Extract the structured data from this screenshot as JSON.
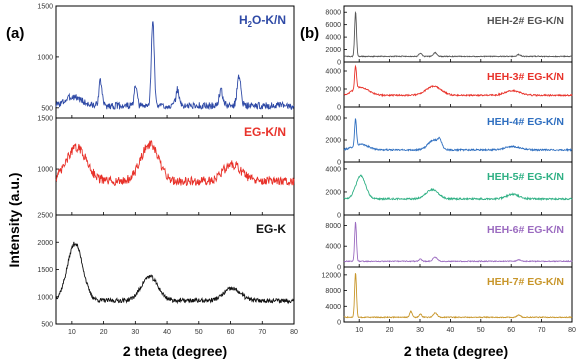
{
  "chart_data": [
    {
      "panel": "(a)",
      "type": "line",
      "xlabel": "2 theta (degree)",
      "ylabel": "Intensity (a.u.)",
      "xlim": [
        5,
        80
      ],
      "xticks": [
        10,
        20,
        30,
        40,
        50,
        60,
        70,
        80
      ],
      "subplots": [
        {
          "label": "H2O-K/N",
          "label_main": "H",
          "label_sub": "2",
          "label_rest": "O-K/N",
          "color": "#2f4aa6",
          "ylim": [
            400,
            1500
          ],
          "yticks": [
            500,
            1000,
            1500
          ],
          "baseline": 520,
          "peaks": [
            [
              10.5,
              90,
              2.5
            ],
            [
              19.0,
              240,
              0.5
            ],
            [
              30.1,
              190,
              0.45
            ],
            [
              35.5,
              850,
              0.45
            ],
            [
              43.3,
              160,
              0.5
            ],
            [
              57.0,
              150,
              0.6
            ],
            [
              62.7,
              290,
              0.6
            ]
          ],
          "noise": 35
        },
        {
          "label": "EG-K/N",
          "color": "#e8322a",
          "ylim": [
            550,
            1500
          ],
          "yticks": [
            1000,
            1500
          ],
          "baseline": 880,
          "peaks": [
            [
              11.5,
              330,
              3.2
            ],
            [
              34.5,
              360,
              2.8
            ],
            [
              60.5,
              160,
              3.0
            ]
          ],
          "noise": 45
        },
        {
          "label": "EG-K",
          "color": "#111111",
          "ylim": [
            500,
            2500
          ],
          "yticks": [
            500,
            1000,
            1500,
            2000,
            2500
          ],
          "baseline": 930,
          "peaks": [
            [
              11.0,
              1050,
              2.4
            ],
            [
              34.5,
              440,
              2.6
            ],
            [
              60.5,
              220,
              2.6
            ]
          ],
          "noise": 40
        }
      ]
    },
    {
      "panel": "(b)",
      "type": "line",
      "xlabel": "2 theta (degree)",
      "xlim": [
        5,
        80
      ],
      "xticks": [
        10,
        20,
        30,
        40,
        50,
        60,
        70,
        80
      ],
      "subplots": [
        {
          "label": "HEH-2#  EG-K/N",
          "color": "#555555",
          "ylim": [
            0,
            9000
          ],
          "yticks": [
            0,
            2000,
            4000,
            6000,
            8000
          ],
          "baseline": 900,
          "peaks": [
            [
              8.8,
              7200,
              0.3
            ],
            [
              30.1,
              500,
              0.5
            ],
            [
              35.0,
              600,
              0.6
            ],
            [
              62.5,
              300,
              0.6
            ]
          ],
          "noise": 70
        },
        {
          "label": "HEH-3#  EG-K/N",
          "color": "#e8322a",
          "ylim": [
            0,
            5000
          ],
          "yticks": [
            0,
            2000,
            4000
          ],
          "baseline": 1300,
          "peaks": [
            [
              8.8,
              2600,
              0.3
            ],
            [
              10.5,
              900,
              2.5
            ],
            [
              34.5,
              1000,
              2.5
            ],
            [
              60.5,
              500,
              2.5
            ]
          ],
          "noise": 80
        },
        {
          "label": "HEH-4#  EG-K/N",
          "color": "#2f6fc0",
          "ylim": [
            0,
            5000
          ],
          "yticks": [
            0,
            2000,
            4000
          ],
          "baseline": 1100,
          "peaks": [
            [
              8.8,
              2500,
              0.3
            ],
            [
              10.5,
              500,
              2.5
            ],
            [
              34.5,
              900,
              1.8
            ],
            [
              36.5,
              600,
              0.6
            ],
            [
              60.5,
              300,
              2.5
            ]
          ],
          "noise": 70
        },
        {
          "label": "HEH-5#  EG-K/N",
          "color": "#2fb084",
          "ylim": [
            0,
            4600
          ],
          "yticks": [
            0,
            2000,
            4000
          ],
          "baseline": 1400,
          "peaks": [
            [
              10.5,
              2000,
              1.6
            ],
            [
              34.0,
              800,
              2.0
            ],
            [
              60.5,
              400,
              2.0
            ]
          ],
          "noise": 70
        },
        {
          "label": "HEH-6#  EG-K/N",
          "color": "#9b6bc0",
          "ylim": [
            0,
            10000
          ],
          "yticks": [
            0,
            4000,
            8000
          ],
          "baseline": 1100,
          "peaks": [
            [
              8.8,
              7600,
              0.3
            ],
            [
              30.1,
              400,
              0.5
            ],
            [
              35.0,
              800,
              0.7
            ],
            [
              62.5,
              300,
              0.6
            ]
          ],
          "noise": 90
        },
        {
          "label": "HEH-7#  EG-K/N",
          "color": "#c8962a",
          "ylim": [
            0,
            14000
          ],
          "yticks": [
            0,
            4000,
            8000,
            12000
          ],
          "baseline": 1200,
          "peaks": [
            [
              8.8,
              11500,
              0.3
            ],
            [
              27.0,
              1500,
              0.4
            ],
            [
              30.1,
              900,
              0.4
            ],
            [
              35.0,
              1200,
              0.6
            ],
            [
              62.5,
              600,
              0.6
            ]
          ],
          "noise": 120
        }
      ]
    }
  ]
}
